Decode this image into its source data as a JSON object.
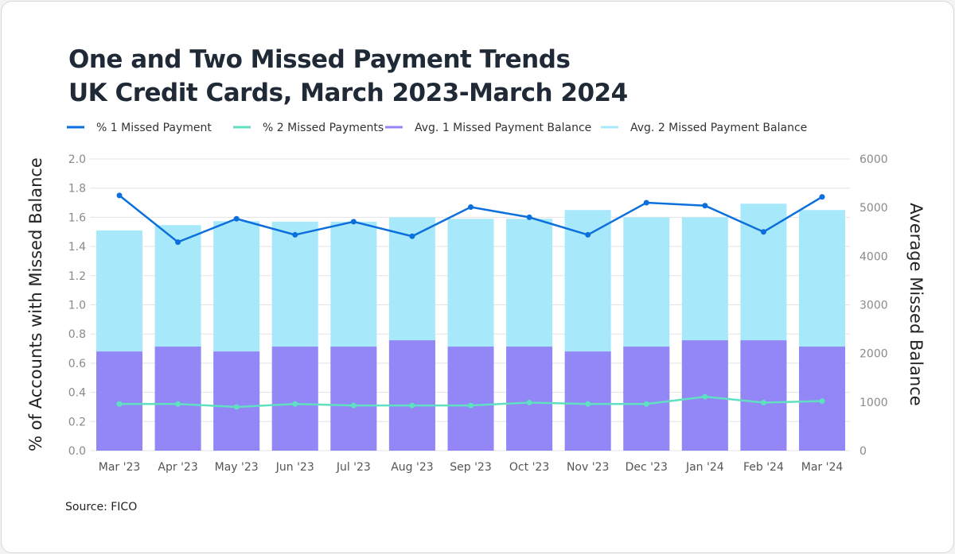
{
  "chart_data": {
    "type": "bar",
    "title": "One and Two Missed Payment Trends\nUK Credit Cards, March 2023-March 2024",
    "title_lines": [
      "One and Two Missed Payment Trends",
      "UK Credit Cards, March 2023-March 2024"
    ],
    "source": "Source: FICO",
    "ylabel": "% of Accounts with Missed Balance",
    "ylabel_right": "Average Missed Balance",
    "ylim": [
      0,
      2.0
    ],
    "ylim_right": [
      0,
      6000
    ],
    "yticks": [
      "0.0",
      "0.2",
      "0.4",
      "0.6",
      "0.8",
      "1.0",
      "1.2",
      "1.4",
      "1.6",
      "1.8",
      "2.0"
    ],
    "yticks_right": [
      "0",
      "1000",
      "2000",
      "3000",
      "4000",
      "5000",
      "6000"
    ],
    "grid": true,
    "legend_position": "top-left",
    "categories": [
      "Mar '23",
      "Apr '23",
      "May '23",
      "Jun '23",
      "Jul '23",
      "Aug '23",
      "Sep '23",
      "Oct '23",
      "Nov '23",
      "Dec '23",
      "Jan '24",
      "Feb '24",
      "Mar '24"
    ],
    "series": [
      {
        "name": "% 1 Missed Payment",
        "type": "line",
        "axis": "left",
        "color": "#0b6fdc",
        "values": [
          1.75,
          1.43,
          1.59,
          1.48,
          1.57,
          1.47,
          1.67,
          1.6,
          1.48,
          1.7,
          1.68,
          1.5,
          1.74
        ]
      },
      {
        "name": "% 2 Missed Payments",
        "type": "line",
        "axis": "left",
        "color": "#5fe0c0",
        "values": [
          0.32,
          0.32,
          0.3,
          0.32,
          0.31,
          0.31,
          0.31,
          0.33,
          0.32,
          0.32,
          0.37,
          0.33,
          0.34
        ]
      },
      {
        "name": "Avg. 1 Missed Payment Balance",
        "type": "bar",
        "axis": "right",
        "color": "#9386f7",
        "values": [
          2040,
          2140,
          2040,
          2140,
          2140,
          2270,
          2140,
          2140,
          2040,
          2140,
          2270,
          2270,
          2140
        ]
      },
      {
        "name": "Avg. 2 Missed Payment Balance",
        "type": "bar",
        "axis": "right",
        "color": "#a8e8fb",
        "values": [
          4530,
          4640,
          4720,
          4710,
          4710,
          4800,
          4770,
          4770,
          4950,
          4800,
          4800,
          5080,
          4950
        ]
      }
    ]
  }
}
